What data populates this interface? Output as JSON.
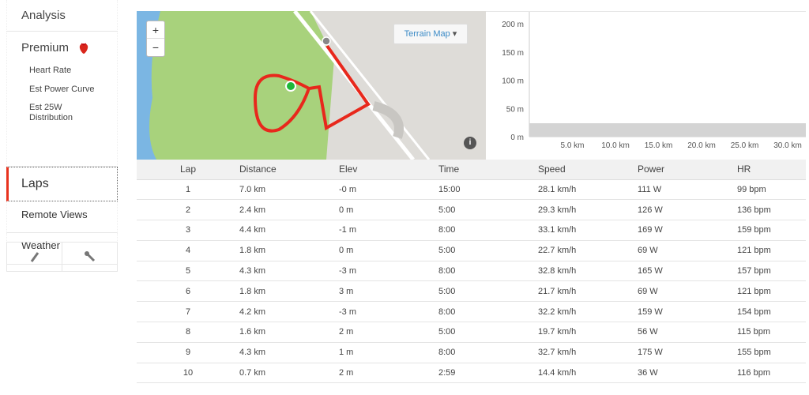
{
  "sidebar": {
    "analysis": "Analysis",
    "premium": "Premium",
    "premium_sub": [
      "Heart Rate",
      "Est Power Curve",
      "Est 25W Distribution"
    ],
    "laps": "Laps",
    "remote_views": "Remote Views",
    "weather": "Weather",
    "accent": "#e8321e"
  },
  "map": {
    "zoom_in": "+",
    "zoom_out": "−",
    "layer_label": "Terrain Map",
    "info": "i"
  },
  "elevation_chart": {
    "y_ticks": [
      "200 m",
      "150 m",
      "100 m",
      "50 m",
      "0 m"
    ],
    "x_ticks": [
      "5.0 km",
      "10.0 km",
      "15.0 km",
      "20.0 km",
      "25.0 km",
      "30.0 km"
    ]
  },
  "laps_table": {
    "headers": [
      "Lap",
      "Distance",
      "Elev",
      "Time",
      "Speed",
      "Power",
      "HR"
    ],
    "rows": [
      [
        "1",
        "7.0 km",
        "-0 m",
        "15:00",
        "28.1 km/h",
        "111 W",
        "99 bpm"
      ],
      [
        "2",
        "2.4 km",
        "0 m",
        "5:00",
        "29.3 km/h",
        "126 W",
        "136 bpm"
      ],
      [
        "3",
        "4.4 km",
        "-1 m",
        "8:00",
        "33.1 km/h",
        "169 W",
        "159 bpm"
      ],
      [
        "4",
        "1.8 km",
        "0 m",
        "5:00",
        "22.7 km/h",
        "69 W",
        "121 bpm"
      ],
      [
        "5",
        "4.3 km",
        "-3 m",
        "8:00",
        "32.8 km/h",
        "165 W",
        "157 bpm"
      ],
      [
        "6",
        "1.8 km",
        "3 m",
        "5:00",
        "21.7 km/h",
        "69 W",
        "121 bpm"
      ],
      [
        "7",
        "4.2 km",
        "-3 m",
        "8:00",
        "32.2 km/h",
        "159 W",
        "154 bpm"
      ],
      [
        "8",
        "1.6 km",
        "2 m",
        "5:00",
        "19.7 km/h",
        "56 W",
        "115 bpm"
      ],
      [
        "9",
        "4.3 km",
        "1 m",
        "8:00",
        "32.7 km/h",
        "175 W",
        "155 bpm"
      ],
      [
        "10",
        "0.7 km",
        "2 m",
        "2:59",
        "14.4 km/h",
        "36 W",
        "116 bpm"
      ]
    ]
  }
}
